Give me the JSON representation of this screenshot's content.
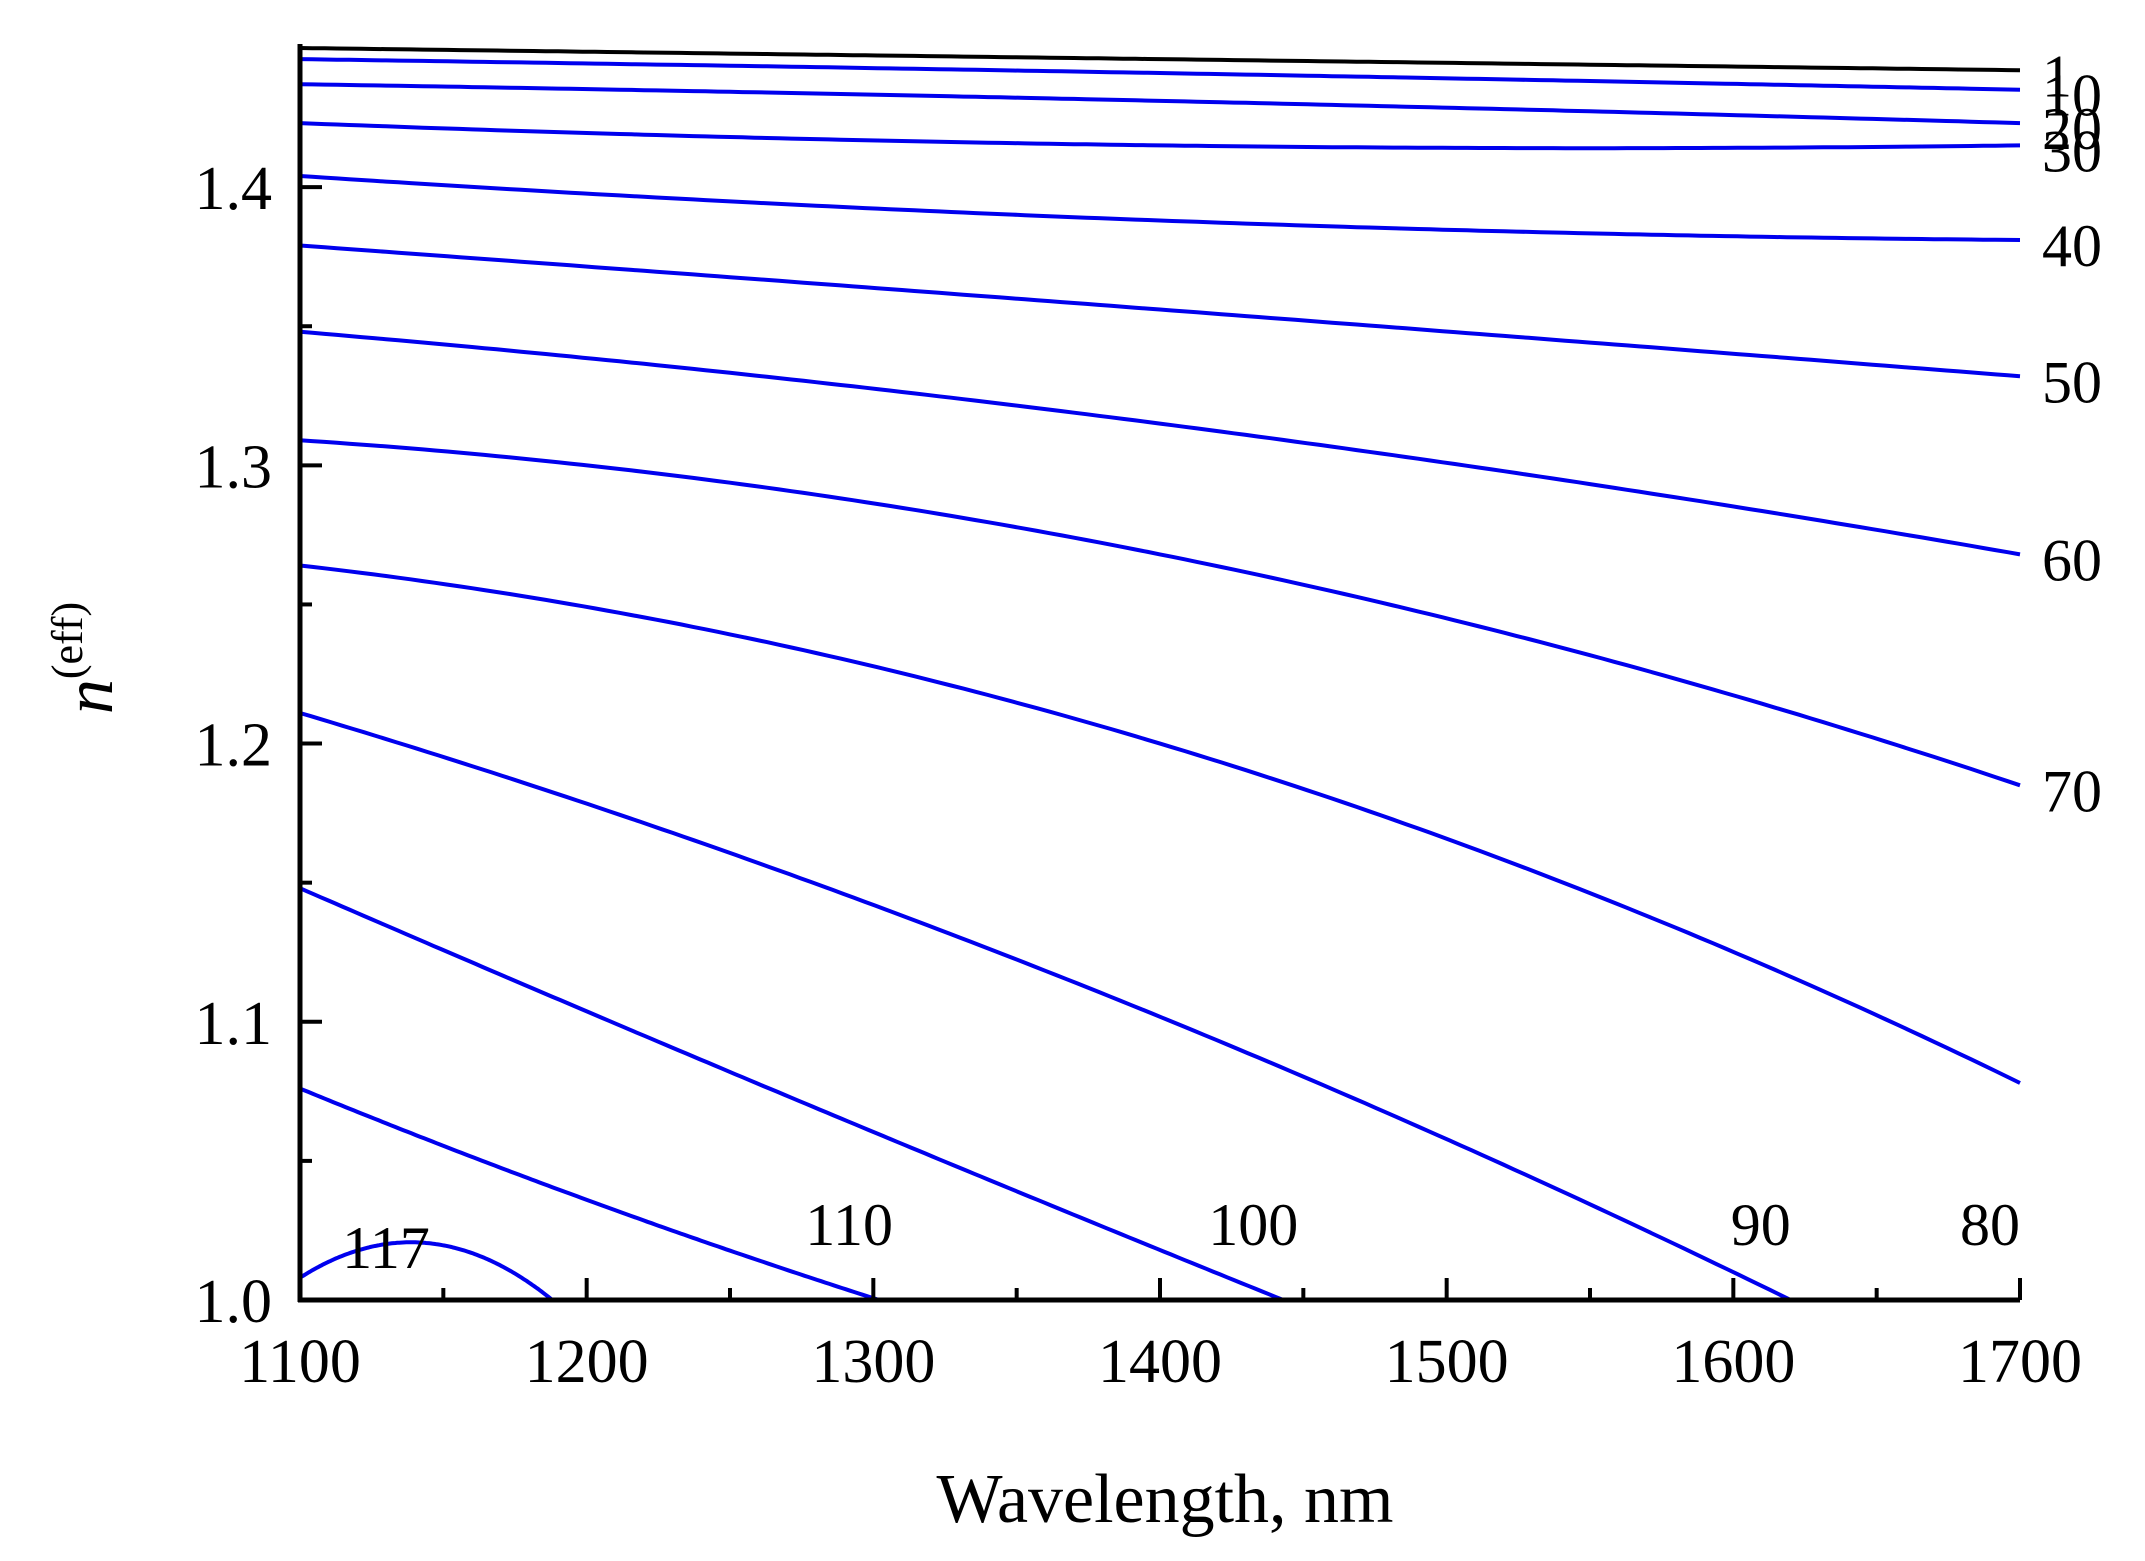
{
  "chart_data": {
    "type": "line",
    "title": "",
    "xlabel": "Wavelength, nm",
    "ylabel": {
      "base": "n",
      "superscript": "(eff)"
    },
    "xlim": [
      1100,
      1700
    ],
    "ylim": [
      1.0,
      1.45
    ],
    "x_ticks": [
      1100,
      1200,
      1300,
      1400,
      1500,
      1600,
      1700
    ],
    "x_tick_labels": [
      "1100",
      "1200",
      "1300",
      "1400",
      "1500",
      "1600",
      "1700"
    ],
    "y_ticks": [
      1.0,
      1.1,
      1.2,
      1.3,
      1.4
    ],
    "y_tick_labels": [
      "1.0",
      "1.1",
      "1.2",
      "1.3",
      "1.4"
    ],
    "grid": false,
    "series": [
      {
        "name": "1",
        "color": "#000000",
        "label_pos": "right",
        "points": [
          [
            1100,
            1.45
          ],
          [
            1400,
            1.446
          ],
          [
            1700,
            1.442
          ]
        ]
      },
      {
        "name": "10",
        "color": "#0000ee",
        "label_pos": "right",
        "points": [
          [
            1100,
            1.446
          ],
          [
            1400,
            1.441
          ],
          [
            1700,
            1.435
          ]
        ]
      },
      {
        "name": "20",
        "color": "#0000ee",
        "label_pos": "right",
        "points": [
          [
            1100,
            1.437
          ],
          [
            1400,
            1.431
          ],
          [
            1700,
            1.423
          ]
        ]
      },
      {
        "name": "30",
        "color": "#0000ee",
        "label_pos": "right",
        "points": [
          [
            1100,
            1.423
          ],
          [
            1400,
            1.415
          ],
          [
            1700,
            1.415
          ]
        ]
      },
      {
        "name": "40",
        "color": "#0000ee",
        "label_pos": "right",
        "points": [
          [
            1100,
            1.404
          ],
          [
            1400,
            1.388
          ],
          [
            1700,
            1.381
          ]
        ]
      },
      {
        "name": "50",
        "color": "#0000ee",
        "label_pos": "right",
        "points": [
          [
            1100,
            1.379
          ],
          [
            1400,
            1.356
          ],
          [
            1700,
            1.332
          ]
        ]
      },
      {
        "name": "60",
        "color": "#0000ee",
        "label_pos": "right",
        "points": [
          [
            1100,
            1.348
          ],
          [
            1400,
            1.315
          ],
          [
            1700,
            1.268
          ]
        ]
      },
      {
        "name": "70",
        "color": "#0000ee",
        "label_pos": "right",
        "points": [
          [
            1100,
            1.309
          ],
          [
            1400,
            1.268
          ],
          [
            1700,
            1.185
          ]
        ]
      },
      {
        "name": "80",
        "color": "#0000ee",
        "label_pos": "bottom",
        "points": [
          [
            1100,
            1.264
          ],
          [
            1400,
            1.2
          ],
          [
            1700,
            1.078
          ]
        ]
      },
      {
        "name": "90",
        "color": "#0000ee",
        "label_pos": "bottom",
        "points": [
          [
            1100,
            1.211
          ],
          [
            1300,
            1.142
          ],
          [
            1620,
            1.0
          ]
        ]
      },
      {
        "name": "100",
        "color": "#0000ee",
        "label_pos": "bottom",
        "points": [
          [
            1100,
            1.148
          ],
          [
            1280,
            1.069
          ],
          [
            1443,
            1.0
          ]
        ]
      },
      {
        "name": "110",
        "color": "#0000ee",
        "label_pos": "bottom",
        "points": [
          [
            1100,
            1.076
          ],
          [
            1200,
            1.036
          ],
          [
            1302,
            1.0
          ]
        ]
      },
      {
        "name": "117",
        "color": "#0000ee",
        "label_pos": "bottom",
        "points": [
          [
            1100,
            1.008
          ],
          [
            1148,
            1.02
          ],
          [
            1188,
            1.0
          ]
        ]
      }
    ]
  }
}
